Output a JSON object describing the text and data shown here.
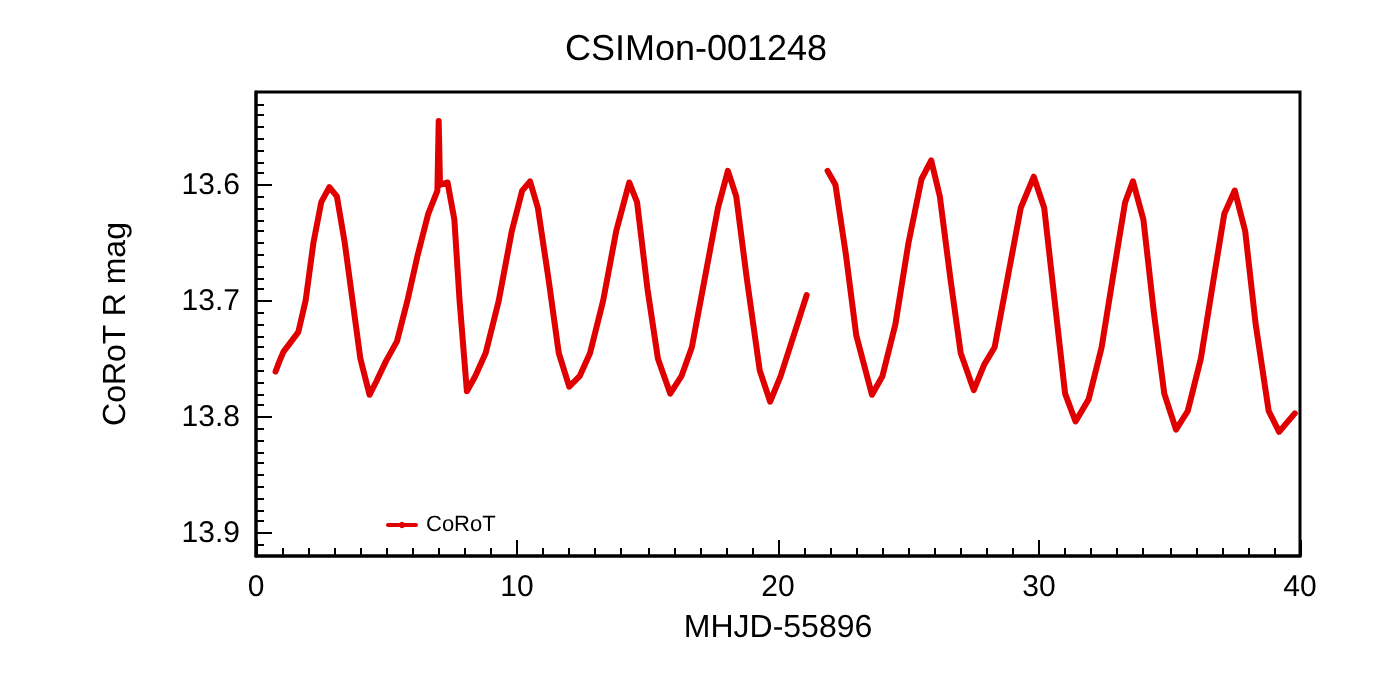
{
  "chart_data": {
    "type": "line",
    "title": "CSIMon-001248",
    "xlabel": "MHJD-55896",
    "ylabel": "CoRoT R mag",
    "xlim": [
      0,
      40
    ],
    "xticks": [
      0,
      10,
      20,
      30,
      40
    ],
    "ylim": [
      13.92,
      13.52
    ],
    "yticks": [
      13.6,
      13.7,
      13.8,
      13.9
    ],
    "grid": false,
    "legend": "bottom left",
    "marker": "none",
    "line_style": "solid",
    "series": [
      {
        "name": "CoRoT",
        "color": "#e00000",
        "x": [
          0.75,
          0.9,
          1.05,
          1.62,
          1.9,
          2.2,
          2.5,
          2.81,
          3.1,
          3.4,
          3.7,
          4.0,
          4.35,
          4.6,
          4.98,
          5.4,
          5.8,
          6.2,
          6.6,
          6.95,
          7.0,
          7.05,
          7.34,
          7.6,
          7.8,
          8.08,
          8.4,
          8.8,
          9.3,
          9.8,
          10.2,
          10.5,
          10.8,
          11.2,
          11.6,
          12.0,
          12.4,
          12.8,
          13.3,
          13.8,
          14.3,
          14.6,
          15.0,
          15.4,
          15.87,
          16.3,
          16.7,
          17.2,
          17.7,
          18.08,
          18.4,
          18.8,
          19.3,
          19.7,
          20.1,
          20.6,
          21.1,
          21.5,
          21.9,
          22.2,
          22.6,
          23.0,
          23.6,
          24.0,
          24.5,
          25.0,
          25.5,
          25.87,
          26.2,
          26.6,
          27.0,
          27.5,
          27.9,
          28.3,
          28.8,
          29.3,
          29.8,
          30.2,
          30.6,
          31.0,
          31.4,
          31.9,
          32.4,
          32.9,
          33.3,
          33.6,
          34.0,
          34.4,
          34.8,
          35.25,
          35.7,
          36.2,
          36.7,
          37.1,
          37.5,
          37.9,
          38.3,
          38.8,
          39.2,
          39.8
        ],
        "values": [
          13.761,
          13.752,
          13.744,
          13.727,
          13.7,
          13.65,
          13.615,
          13.602,
          13.61,
          13.65,
          13.7,
          13.75,
          13.781,
          13.77,
          13.752,
          13.735,
          13.7,
          13.66,
          13.625,
          13.605,
          13.545,
          13.6,
          13.598,
          13.63,
          13.7,
          13.778,
          13.765,
          13.745,
          13.7,
          13.64,
          13.605,
          13.597,
          13.62,
          13.68,
          13.745,
          13.774,
          13.765,
          13.745,
          13.7,
          13.64,
          13.598,
          13.615,
          13.69,
          13.75,
          13.78,
          13.765,
          13.74,
          13.68,
          13.62,
          13.588,
          13.61,
          13.68,
          13.76,
          13.787,
          13.765,
          13.73,
          13.695,
          null,
          13.588,
          13.6,
          13.66,
          13.73,
          13.781,
          13.765,
          13.72,
          13.65,
          13.595,
          13.579,
          13.61,
          13.68,
          13.745,
          13.777,
          13.755,
          13.74,
          13.68,
          13.62,
          13.593,
          13.62,
          13.7,
          13.78,
          13.804,
          13.785,
          13.74,
          13.67,
          13.615,
          13.597,
          13.63,
          13.71,
          13.78,
          13.811,
          13.795,
          13.75,
          13.68,
          13.625,
          13.605,
          13.64,
          13.72,
          13.795,
          13.813,
          13.797
        ]
      }
    ]
  }
}
